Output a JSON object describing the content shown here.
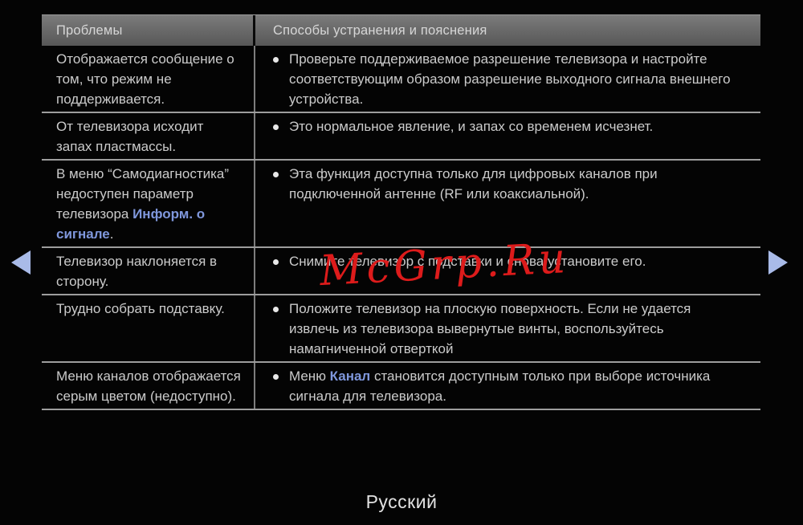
{
  "colors": {
    "background": "#040404",
    "accent_blue": "#7f97dc",
    "arrow": "#a9bbe8",
    "watermark_red": "#dd1b1b"
  },
  "watermark": {
    "text": "McGrp.Ru"
  },
  "footer": {
    "language": "Русский"
  },
  "nav": {
    "prev_label": "previous-page",
    "next_label": "next-page"
  },
  "table": {
    "columns": [
      "Проблемы",
      "Способы устранения и пояснения"
    ],
    "rows": [
      {
        "problem": [
          {
            "text": "Отображается сообщение о том, что режим не поддерживается."
          }
        ],
        "solution": [
          {
            "text": "Проверьте поддерживаемое разрешение телевизора и настройте соответствующим образом разрешение выходного сигнала внешнего устройства."
          }
        ]
      },
      {
        "problem": [
          {
            "text": "От телевизора исходит запах пластмассы."
          }
        ],
        "solution": [
          {
            "text": "Это нормальное явление, и запах со временем исчезнет."
          }
        ]
      },
      {
        "problem": [
          {
            "text": "В меню “Самодиагностика” недоступен параметр телевизора "
          },
          {
            "text": "Информ. о сигнале",
            "accent": true
          },
          {
            "text": "."
          }
        ],
        "solution": [
          {
            "text": "Эта функция доступна только для цифровых каналов при подключенной антенне (RF или коаксиальной)."
          }
        ]
      },
      {
        "problem": [
          {
            "text": "Телевизор наклоняется в сторону."
          }
        ],
        "solution": [
          {
            "text": "Снимите телевизор с подставки и снова установите его."
          }
        ]
      },
      {
        "problem": [
          {
            "text": "Трудно собрать подставку."
          }
        ],
        "solution": [
          {
            "text": "Положите телевизор на плоскую поверхность. Если не удается извлечь из телевизора вывернутые винты, воспользуйтесь намагниченной отверткой"
          }
        ]
      },
      {
        "problem": [
          {
            "text": "Меню каналов отображается серым цветом (недоступно)."
          }
        ],
        "solution": [
          {
            "text": "Меню "
          },
          {
            "text": "Канал",
            "accent": true
          },
          {
            "text": " становится доступным только при выборе источника сигнала для телевизора."
          }
        ]
      }
    ]
  }
}
